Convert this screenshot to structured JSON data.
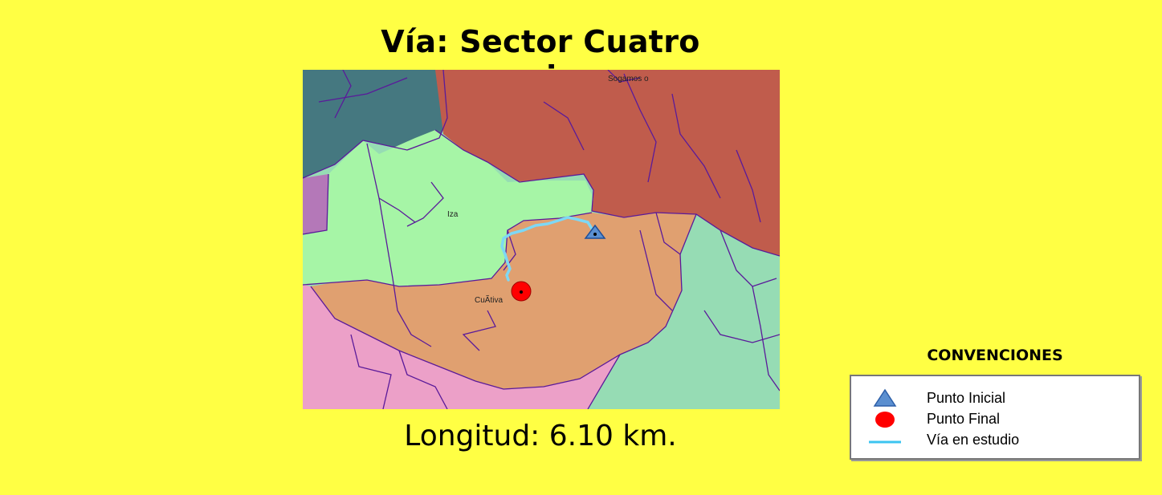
{
  "title": "Vía: Sector Cuatro esquinas",
  "length_text": "Longitud: 6.10 km.",
  "map": {
    "place_labels": {
      "sogamoso": "Sogamos o",
      "iza": "Iza",
      "cuitiva": "CuÃ­tiva"
    },
    "colors": {
      "teal_region": "#457880",
      "red_region": "#c05c4c",
      "green_region": "#a6f5a6",
      "orange_region": "#e0a070",
      "pink_region": "#eca0c8",
      "mint_region": "#96dcb4",
      "purple_region": "#b478b8",
      "road": "#7dd8f5",
      "boundary": "#5a1a9a"
    }
  },
  "legend": {
    "title": "CONVENCIONES",
    "items": [
      {
        "label": "Punto Inicial",
        "icon": "blue-triangle-icon",
        "color": "#5b8fd0"
      },
      {
        "label": "Punto Final",
        "icon": "red-circle-icon",
        "color": "#ff0000"
      },
      {
        "label": "Vía en estudio",
        "icon": "blue-line-icon",
        "color": "#3cc4f0"
      }
    ]
  }
}
